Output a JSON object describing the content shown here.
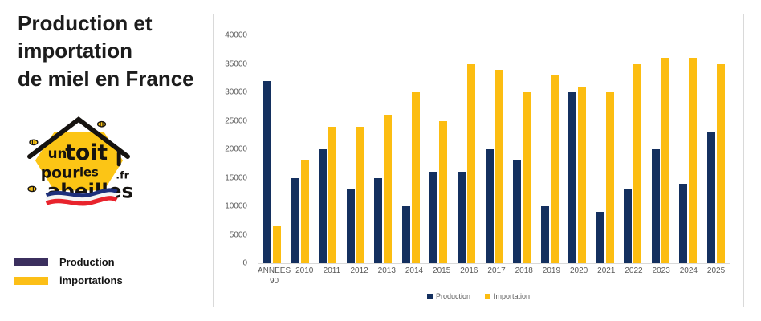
{
  "header": {
    "title_lines": [
      "Production et",
      "importation",
      "de miel en France"
    ]
  },
  "logo": {
    "word1": "un",
    "word2": "toit",
    "word3": "pour",
    "word4": "les",
    "word5": "abeilles",
    "tld": ".fr",
    "hex_color": "#fcc515",
    "flag_blue": "#1d2f7b",
    "flag_red": "#e8232c"
  },
  "side_legend": {
    "items": [
      {
        "label": "Production",
        "color": "#3b2f5e"
      },
      {
        "label": "importations",
        "color": "#fcbf17"
      }
    ]
  },
  "chart_data": {
    "type": "bar",
    "categories": [
      "ANNEES 90",
      "2010",
      "2011",
      "2012",
      "2013",
      "2014",
      "2015",
      "2016",
      "2017",
      "2018",
      "2019",
      "2020",
      "2021",
      "2022",
      "2023",
      "2024",
      "2025"
    ],
    "series": [
      {
        "name": "Production",
        "color": "#14305f",
        "values": [
          32000,
          15000,
          20000,
          13000,
          15000,
          10000,
          16000,
          16000,
          20000,
          18000,
          10000,
          30000,
          9000,
          13000,
          20000,
          14000,
          23000
        ]
      },
      {
        "name": "Importation",
        "color": "#fcbd11",
        "values": [
          6500,
          18000,
          24000,
          24000,
          26000,
          30000,
          25000,
          35000,
          34000,
          30000,
          33000,
          31000,
          30000,
          35000,
          36000,
          36000,
          35000
        ]
      }
    ],
    "title": "",
    "xlabel": "",
    "ylabel": "",
    "ylim": [
      0,
      40000
    ],
    "ytick_step": 5000,
    "grid": false,
    "legend_position": "bottom"
  }
}
